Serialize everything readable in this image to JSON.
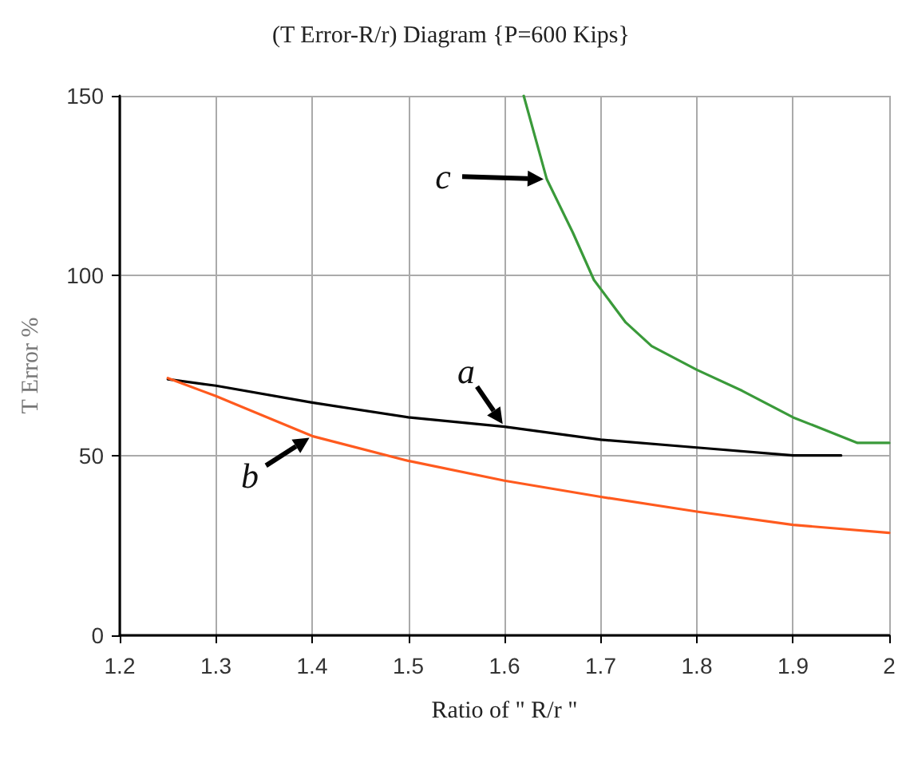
{
  "chart_data": {
    "type": "line",
    "title": "(T Error-R/r) Diagram {P=600 Kips}",
    "xlabel": "Ratio of \" R/r \"",
    "ylabel": "T Error %",
    "xlim": [
      1.2,
      2
    ],
    "xticks": [
      1.2,
      1.3,
      1.4,
      1.5,
      1.6,
      1.7,
      1.8,
      1.9,
      2
    ],
    "ylim": [
      0,
      150
    ],
    "yticks": [
      0,
      50,
      100,
      150
    ],
    "grid": true,
    "marker": "none",
    "line_style": "solid",
    "series": [
      {
        "color": "#000000",
        "x": [
          1.25,
          1.3,
          1.4,
          1.5,
          1.6,
          1.7,
          1.8,
          1.9,
          1.95
        ],
        "values": [
          71.2,
          69.4,
          64.7,
          60.6,
          58,
          54.4,
          52.2,
          50,
          50
        ]
      },
      {
        "color": "#ff5a1e",
        "x": [
          1.25,
          1.3,
          1.4,
          1.5,
          1.6,
          1.7,
          1.8,
          1.9,
          2
        ],
        "values": [
          71.5,
          66.5,
          55.4,
          48.5,
          43,
          38.5,
          34.4,
          30.7,
          28.5
        ]
      },
      {
        "color": "#3a9a3a",
        "x": [
          1.62,
          1.644,
          1.671,
          1.693,
          1.726,
          1.753,
          1.8,
          1.847,
          1.9,
          1.967,
          2
        ],
        "values": [
          150,
          126.8,
          112,
          98.8,
          87,
          80.4,
          73.8,
          68,
          60.6,
          53.5,
          53.5
        ]
      }
    ],
    "annotations": [
      {
        "text": "a",
        "x": 1.6,
        "y": 58
      },
      {
        "text": "b",
        "x": 1.4,
        "y": 55.4
      },
      {
        "text": "c",
        "x": 1.644,
        "y": 126.8
      }
    ]
  }
}
